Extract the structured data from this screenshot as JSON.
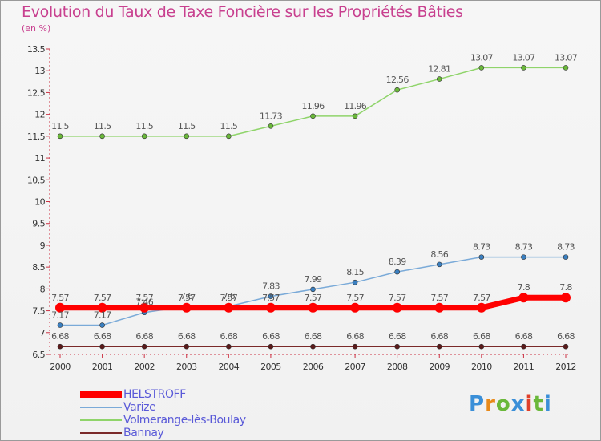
{
  "title": "Evolution du Taux de Taxe Foncière sur les Propriétés Bâties",
  "subtitle": "(en %)",
  "logo": {
    "text": "Proxiti",
    "letters": [
      "P",
      "r",
      "o",
      "x",
      "i",
      "t",
      "i"
    ]
  },
  "chart_data": {
    "type": "line",
    "title": "Evolution du Taux de Taxe Foncière sur les Propriétés Bâties",
    "ylabel": "(en %)",
    "xlabel": "",
    "ylim": [
      6.5,
      13.5
    ],
    "yticks": [
      6.5,
      7,
      7.5,
      8,
      8.5,
      9,
      9.5,
      10,
      10.5,
      11,
      11.5,
      12,
      12.5,
      13,
      13.5
    ],
    "ytick_labels": [
      "6.5",
      "7",
      "7.5",
      "8",
      "8.5",
      "9",
      "9.5",
      "10",
      "10.5",
      "11",
      "11.5",
      "12",
      "12.5",
      "13",
      "13.5"
    ],
    "x": [
      "2000",
      "2001",
      "2002",
      "2003",
      "2004",
      "2005",
      "2006",
      "2007",
      "2008",
      "2009",
      "2010",
      "2011",
      "2012"
    ],
    "grid": false,
    "legend": "bottom-left",
    "series": [
      {
        "name": "Volmerange-lès-Boulay",
        "color": "#8fd46a",
        "marker": "#6ab83a",
        "width": 1.5,
        "values": [
          11.5,
          11.5,
          11.5,
          11.5,
          11.5,
          11.73,
          11.96,
          11.96,
          12.56,
          12.81,
          13.07,
          13.07,
          13.07
        ],
        "labels": [
          "11.5",
          "11.5",
          "11.5",
          "11.5",
          "11.5",
          "11.73",
          "11.96",
          "11.96",
          "12.56",
          "12.81",
          "13.07",
          "13.07",
          "13.07"
        ]
      },
      {
        "name": "Varize",
        "color": "#7aaad8",
        "marker": "#3a7fc0",
        "width": 1.5,
        "values": [
          7.17,
          7.17,
          7.46,
          7.6,
          7.6,
          7.83,
          7.99,
          8.15,
          8.39,
          8.56,
          8.73,
          8.73,
          8.73
        ],
        "labels": [
          "7.17",
          "7.17",
          "7.46",
          "7.6",
          "7.6",
          "7.83",
          "7.99",
          "8.15",
          "8.39",
          "8.56",
          "8.73",
          "8.73",
          "8.73"
        ]
      },
      {
        "name": "Bannay",
        "color": "#7a2a2a",
        "marker": "#5a1a1a",
        "width": 1.5,
        "values": [
          6.68,
          6.68,
          6.68,
          6.68,
          6.68,
          6.68,
          6.68,
          6.68,
          6.68,
          6.68,
          6.68,
          6.68,
          6.68
        ],
        "labels": [
          "6.68",
          "6.68",
          "6.68",
          "6.68",
          "6.68",
          "6.68",
          "6.68",
          "6.68",
          "6.68",
          "6.68",
          "6.68",
          "6.68",
          "6.68"
        ]
      },
      {
        "name": "HELSTROFF",
        "color": "#ff0000",
        "marker": "#ff0000",
        "width": 7,
        "values": [
          7.57,
          7.57,
          7.57,
          7.57,
          7.57,
          7.57,
          7.57,
          7.57,
          7.57,
          7.57,
          7.57,
          7.8,
          7.8
        ],
        "labels": [
          "7.57",
          "7.57",
          "7.57",
          "7.57",
          "7.57",
          "7.57",
          "7.57",
          "7.57",
          "7.57",
          "7.57",
          "7.57",
          "7.8",
          "7.8"
        ]
      }
    ],
    "legend_order": [
      "HELSTROFF",
      "Varize",
      "Volmerange-lès-Boulay",
      "Bannay"
    ]
  }
}
